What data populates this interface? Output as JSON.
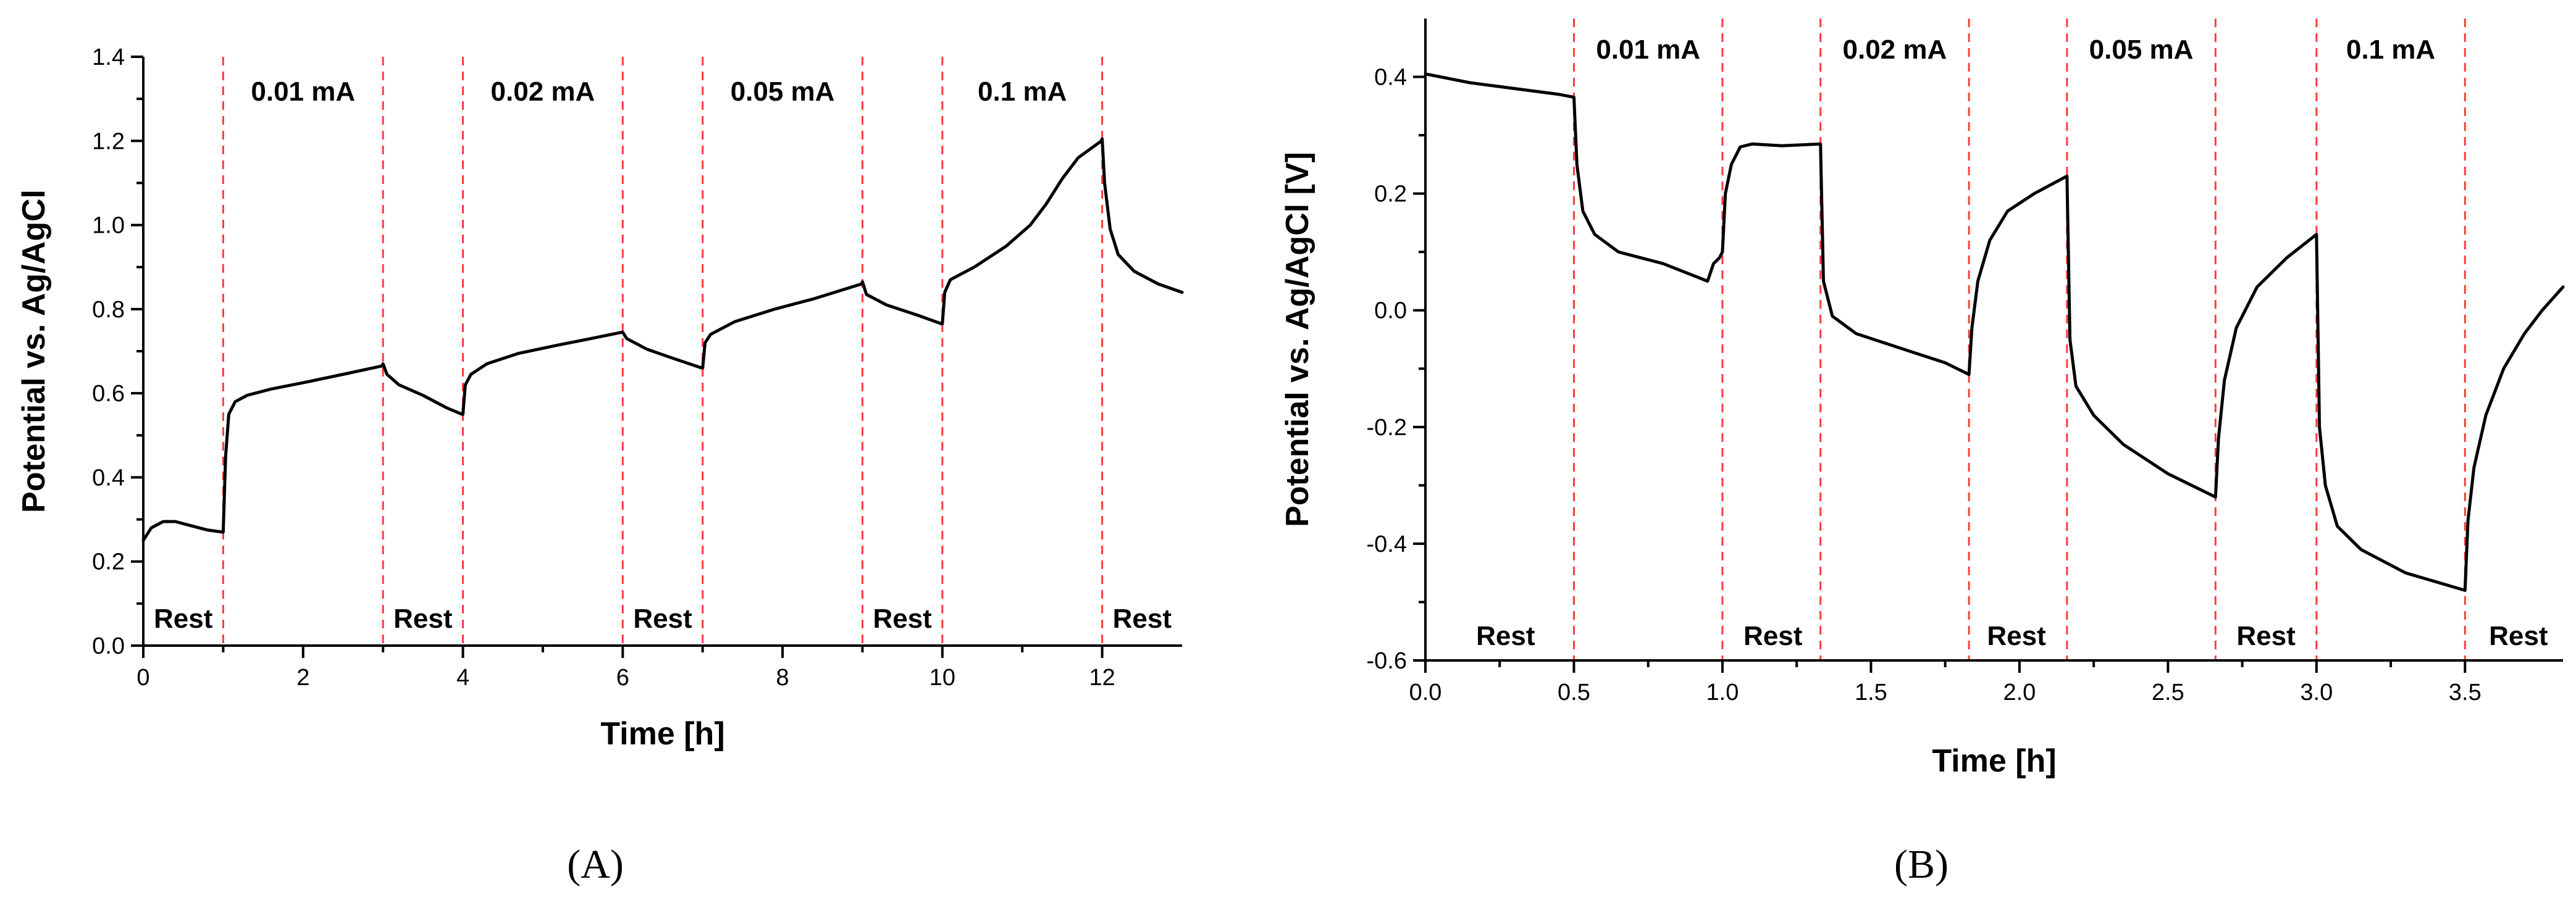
{
  "chart_data": [
    {
      "type": "line",
      "panel": "A",
      "xlabel": "Time [h]",
      "ylabel": "Potential vs. Ag/AgCl",
      "xlim": [
        0,
        13
      ],
      "ylim": [
        0,
        1.4
      ],
      "xticks": [
        0,
        2,
        4,
        6,
        8,
        10,
        12
      ],
      "xtick_labels": [
        "0",
        "2",
        "4",
        "6",
        "8",
        "10",
        "12"
      ],
      "yticks": [
        0,
        0.2,
        0.4,
        0.6,
        0.8,
        1.0,
        1.2,
        1.4
      ],
      "ytick_labels": [
        "0.0",
        "0.2",
        "0.4",
        "0.6",
        "0.8",
        "1.0",
        "1.2",
        "1.4"
      ],
      "vlines": [
        1,
        3,
        4,
        6,
        7,
        9,
        10,
        12
      ],
      "top_labels": [
        {
          "text": "0.01 mA",
          "x": 2
        },
        {
          "text": "0.02 mA",
          "x": 5
        },
        {
          "text": "0.05 mA",
          "x": 8
        },
        {
          "text": "0.1 mA",
          "x": 11
        }
      ],
      "bottom_labels": [
        {
          "text": "Rest",
          "x": 0.5
        },
        {
          "text": "Rest",
          "x": 3.5
        },
        {
          "text": "Rest",
          "x": 6.5
        },
        {
          "text": "Rest",
          "x": 9.5
        },
        {
          "text": "Rest",
          "x": 12.5
        }
      ],
      "series": [
        {
          "name": "Potential",
          "points": [
            [
              0,
              0.25
            ],
            [
              0.1,
              0.28
            ],
            [
              0.25,
              0.295
            ],
            [
              0.4,
              0.295
            ],
            [
              0.6,
              0.285
            ],
            [
              0.8,
              0.275
            ],
            [
              0.99,
              0.27
            ],
            [
              1.0,
              0.27
            ],
            [
              1.03,
              0.45
            ],
            [
              1.07,
              0.55
            ],
            [
              1.15,
              0.58
            ],
            [
              1.3,
              0.595
            ],
            [
              1.6,
              0.61
            ],
            [
              2.0,
              0.625
            ],
            [
              2.5,
              0.645
            ],
            [
              2.99,
              0.665
            ],
            [
              3.0,
              0.67
            ],
            [
              3.05,
              0.645
            ],
            [
              3.2,
              0.62
            ],
            [
              3.5,
              0.595
            ],
            [
              3.8,
              0.565
            ],
            [
              3.99,
              0.55
            ],
            [
              4.0,
              0.55
            ],
            [
              4.03,
              0.62
            ],
            [
              4.1,
              0.645
            ],
            [
              4.3,
              0.67
            ],
            [
              4.7,
              0.695
            ],
            [
              5.2,
              0.715
            ],
            [
              5.6,
              0.73
            ],
            [
              5.99,
              0.745
            ],
            [
              6.0,
              0.745
            ],
            [
              6.05,
              0.73
            ],
            [
              6.3,
              0.705
            ],
            [
              6.6,
              0.685
            ],
            [
              6.99,
              0.66
            ],
            [
              7.0,
              0.66
            ],
            [
              7.03,
              0.72
            ],
            [
              7.1,
              0.74
            ],
            [
              7.4,
              0.77
            ],
            [
              7.9,
              0.8
            ],
            [
              8.4,
              0.825
            ],
            [
              8.99,
              0.86
            ],
            [
              9.0,
              0.865
            ],
            [
              9.05,
              0.835
            ],
            [
              9.3,
              0.81
            ],
            [
              9.7,
              0.785
            ],
            [
              9.99,
              0.765
            ],
            [
              10.0,
              0.765
            ],
            [
              10.03,
              0.84
            ],
            [
              10.1,
              0.87
            ],
            [
              10.4,
              0.9
            ],
            [
              10.8,
              0.95
            ],
            [
              11.1,
              1.0
            ],
            [
              11.3,
              1.05
            ],
            [
              11.5,
              1.11
            ],
            [
              11.7,
              1.16
            ],
            [
              11.99,
              1.2
            ],
            [
              12.0,
              1.205
            ],
            [
              12.03,
              1.1
            ],
            [
              12.1,
              0.99
            ],
            [
              12.2,
              0.93
            ],
            [
              12.4,
              0.89
            ],
            [
              12.7,
              0.86
            ],
            [
              13.0,
              0.84
            ]
          ]
        }
      ]
    },
    {
      "type": "line",
      "panel": "B",
      "xlabel": "Time [h]",
      "ylabel": "Potential vs. Ag/AgCl [V]",
      "xlim": [
        0,
        3.83
      ],
      "ylim": [
        -0.6,
        0.5
      ],
      "xticks": [
        0,
        0.5,
        1.0,
        1.5,
        2.0,
        2.5,
        3.0,
        3.5
      ],
      "xtick_labels": [
        "0.0",
        "0.5",
        "1.0",
        "1.5",
        "2.0",
        "2.5",
        "3.0",
        "3.5"
      ],
      "yticks": [
        -0.6,
        -0.4,
        -0.2,
        0.0,
        0.2,
        0.4
      ],
      "ytick_labels": [
        "-0.6",
        "-0.4",
        "-0.2",
        "0.0",
        "0.2",
        "0.4"
      ],
      "vlines": [
        0.5,
        1.0,
        1.33,
        1.83,
        2.16,
        2.66,
        3.0,
        3.5
      ],
      "top_labels": [
        {
          "text": "0.01 mA",
          "x": 0.75
        },
        {
          "text": "0.02 mA",
          "x": 1.58
        },
        {
          "text": "0.05 mA",
          "x": 2.41
        },
        {
          "text": "0.1 mA",
          "x": 3.25
        }
      ],
      "bottom_labels": [
        {
          "text": "Rest",
          "x": 0.27
        },
        {
          "text": "Rest",
          "x": 1.17
        },
        {
          "text": "Rest",
          "x": 1.99
        },
        {
          "text": "Rest",
          "x": 2.83
        },
        {
          "text": "Rest",
          "x": 3.68
        }
      ],
      "series": [
        {
          "name": "Potential",
          "points": [
            [
              0,
              0.405
            ],
            [
              0.05,
              0.4
            ],
            [
              0.15,
              0.39
            ],
            [
              0.3,
              0.38
            ],
            [
              0.45,
              0.37
            ],
            [
              0.5,
              0.365
            ],
            [
              0.51,
              0.25
            ],
            [
              0.53,
              0.17
            ],
            [
              0.57,
              0.13
            ],
            [
              0.65,
              0.1
            ],
            [
              0.8,
              0.08
            ],
            [
              0.95,
              0.05
            ],
            [
              0.97,
              0.08
            ],
            [
              0.99,
              0.09
            ],
            [
              1.0,
              0.1
            ],
            [
              1.01,
              0.2
            ],
            [
              1.03,
              0.25
            ],
            [
              1.06,
              0.28
            ],
            [
              1.1,
              0.285
            ],
            [
              1.2,
              0.282
            ],
            [
              1.33,
              0.285
            ],
            [
              1.34,
              0.05
            ],
            [
              1.37,
              -0.01
            ],
            [
              1.45,
              -0.04
            ],
            [
              1.6,
              -0.065
            ],
            [
              1.75,
              -0.09
            ],
            [
              1.83,
              -0.11
            ],
            [
              1.84,
              -0.03
            ],
            [
              1.86,
              0.05
            ],
            [
              1.9,
              0.12
            ],
            [
              1.96,
              0.17
            ],
            [
              2.05,
              0.2
            ],
            [
              2.16,
              0.23
            ],
            [
              2.17,
              -0.05
            ],
            [
              2.19,
              -0.13
            ],
            [
              2.25,
              -0.18
            ],
            [
              2.35,
              -0.23
            ],
            [
              2.5,
              -0.28
            ],
            [
              2.66,
              -0.32
            ],
            [
              2.67,
              -0.22
            ],
            [
              2.69,
              -0.12
            ],
            [
              2.73,
              -0.03
            ],
            [
              2.8,
              0.04
            ],
            [
              2.9,
              0.09
            ],
            [
              3.0,
              0.13
            ],
            [
              3.01,
              -0.2
            ],
            [
              3.03,
              -0.3
            ],
            [
              3.07,
              -0.37
            ],
            [
              3.15,
              -0.41
            ],
            [
              3.3,
              -0.45
            ],
            [
              3.5,
              -0.48
            ],
            [
              3.51,
              -0.36
            ],
            [
              3.53,
              -0.27
            ],
            [
              3.57,
              -0.18
            ],
            [
              3.63,
              -0.1
            ],
            [
              3.7,
              -0.04
            ],
            [
              3.76,
              0.0
            ],
            [
              3.83,
              0.04
            ]
          ]
        }
      ]
    }
  ],
  "panel_labels": [
    "(A)",
    "(B)"
  ]
}
